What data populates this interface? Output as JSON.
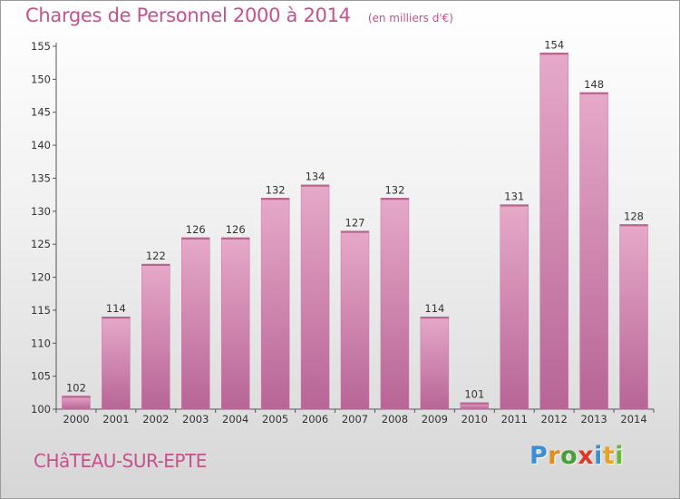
{
  "title": "Charges de Personnel 2000 à 2014",
  "subtitle": "(en milliers d'€)",
  "commune": "CHâTEAU-SUR-EPTE",
  "logo": {
    "letters": [
      "P",
      "r",
      "o",
      "x",
      "i",
      "t",
      "i"
    ],
    "colors": [
      "#3a8fd8",
      "#e58a1f",
      "#4a9e3a",
      "#d93a2a",
      "#3a8fd8",
      "#e5a31f",
      "#6ab83a"
    ]
  },
  "colors": {
    "bar": "#d48aaf",
    "bar_light": "#e6a9c8",
    "bar_dark": "#b76596",
    "title": "#c8508d"
  },
  "chart_data": {
    "type": "bar",
    "categories": [
      "2000",
      "2001",
      "2002",
      "2003",
      "2004",
      "2005",
      "2006",
      "2007",
      "2008",
      "2009",
      "2010",
      "2011",
      "2012",
      "2013",
      "2014"
    ],
    "values": [
      102,
      114,
      122,
      126,
      126,
      132,
      134,
      127,
      132,
      114,
      101,
      131,
      154,
      148,
      128
    ],
    "ylim": [
      100,
      155
    ],
    "yticks": [
      100,
      105,
      110,
      115,
      120,
      125,
      130,
      135,
      140,
      145,
      150,
      155
    ],
    "grid": false,
    "xlabel": "",
    "ylabel": ""
  }
}
